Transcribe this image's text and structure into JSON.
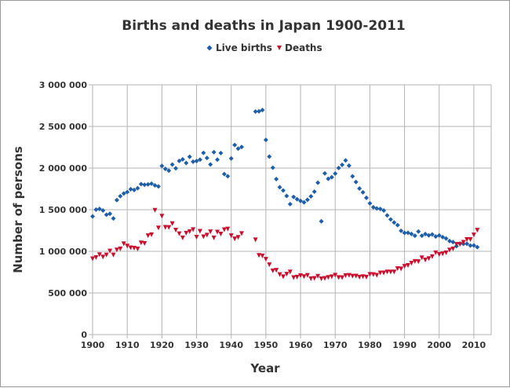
{
  "chart_data": {
    "type": "scatter",
    "title": "Births and deaths in Japan 1900-2011",
    "xlabel": "Year",
    "ylabel": "Number of persons",
    "xlim": [
      1900,
      2015
    ],
    "ylim": [
      0,
      3000000
    ],
    "xticks": [
      "1900",
      "1910",
      "1920",
      "1930",
      "1940",
      "1950",
      "1960",
      "1970",
      "1980",
      "1990",
      "2000",
      "2010"
    ],
    "yticks": [
      "0",
      "500 000",
      "1 000 000",
      "1 500 000",
      "2 000 000",
      "2 500 000",
      "3 000 000"
    ],
    "grid": true,
    "legend_position": "top",
    "series": [
      {
        "name": "Live births",
        "marker": "diamond",
        "color": "#1f5fa8",
        "x": [
          1900,
          1901,
          1902,
          1903,
          1904,
          1905,
          1906,
          1907,
          1908,
          1909,
          1910,
          1911,
          1912,
          1913,
          1914,
          1915,
          1916,
          1917,
          1918,
          1919,
          1920,
          1921,
          1922,
          1923,
          1924,
          1925,
          1926,
          1927,
          1928,
          1929,
          1930,
          1931,
          1932,
          1933,
          1934,
          1935,
          1936,
          1937,
          1938,
          1939,
          1940,
          1941,
          1942,
          1943,
          1947,
          1948,
          1949,
          1950,
          1951,
          1952,
          1953,
          1954,
          1955,
          1956,
          1957,
          1958,
          1959,
          1960,
          1961,
          1962,
          1963,
          1964,
          1965,
          1966,
          1967,
          1968,
          1969,
          1970,
          1971,
          1972,
          1973,
          1974,
          1975,
          1976,
          1977,
          1978,
          1979,
          1980,
          1981,
          1982,
          1983,
          1984,
          1985,
          1986,
          1987,
          1988,
          1989,
          1990,
          1991,
          1992,
          1993,
          1994,
          1995,
          1996,
          1997,
          1998,
          1999,
          2000,
          2001,
          2002,
          2003,
          2004,
          2005,
          2006,
          2007,
          2008,
          2009,
          2010,
          2011
        ],
        "values": [
          1420000,
          1501000,
          1510000,
          1490000,
          1440000,
          1452000,
          1395000,
          1615000,
          1663000,
          1694000,
          1712000,
          1747000,
          1737000,
          1758000,
          1808000,
          1800000,
          1804000,
          1813000,
          1792000,
          1779000,
          2026000,
          1991000,
          1969000,
          2043000,
          1998000,
          2086000,
          2105000,
          2061000,
          2136000,
          2077000,
          2085000,
          2102000,
          2183000,
          2121000,
          2044000,
          2191000,
          2101000,
          2181000,
          1928000,
          1902000,
          2116000,
          2277000,
          2234000,
          2254000,
          2679000,
          2682000,
          2697000,
          2338000,
          2138000,
          2005000,
          1868000,
          1770000,
          1731000,
          1665000,
          1567000,
          1653000,
          1626000,
          1606000,
          1589000,
          1619000,
          1660000,
          1717000,
          1824000,
          1361000,
          1936000,
          1872000,
          1890000,
          1934000,
          2001000,
          2039000,
          2092000,
          2030000,
          1901000,
          1833000,
          1755000,
          1709000,
          1643000,
          1577000,
          1529000,
          1515000,
          1509000,
          1490000,
          1432000,
          1383000,
          1347000,
          1315000,
          1247000,
          1222000,
          1223000,
          1209000,
          1188000,
          1238000,
          1187000,
          1207000,
          1192000,
          1203000,
          1178000,
          1191000,
          1171000,
          1154000,
          1124000,
          1111000,
          1063000,
          1093000,
          1090000,
          1091000,
          1070000,
          1071000,
          1051000
        ]
      },
      {
        "name": "Deaths",
        "marker": "triangle-down",
        "color": "#c8102e",
        "x": [
          1900,
          1901,
          1902,
          1903,
          1904,
          1905,
          1906,
          1907,
          1908,
          1909,
          1910,
          1911,
          1912,
          1913,
          1914,
          1915,
          1916,
          1917,
          1918,
          1919,
          1920,
          1921,
          1922,
          1923,
          1924,
          1925,
          1926,
          1927,
          1928,
          1929,
          1930,
          1931,
          1932,
          1933,
          1934,
          1935,
          1936,
          1937,
          1938,
          1939,
          1940,
          1941,
          1942,
          1943,
          1947,
          1948,
          1949,
          1950,
          1951,
          1952,
          1953,
          1954,
          1955,
          1956,
          1957,
          1958,
          1959,
          1960,
          1961,
          1962,
          1963,
          1964,
          1965,
          1966,
          1967,
          1968,
          1969,
          1970,
          1971,
          1972,
          1973,
          1974,
          1975,
          1976,
          1977,
          1978,
          1979,
          1980,
          1981,
          1982,
          1983,
          1984,
          1985,
          1986,
          1987,
          1988,
          1989,
          1990,
          1991,
          1992,
          1993,
          1994,
          1995,
          1996,
          1997,
          1998,
          1999,
          2000,
          2001,
          2002,
          2003,
          2004,
          2005,
          2006,
          2007,
          2008,
          2009,
          2010,
          2011
        ],
        "values": [
          910000,
          926000,
          960000,
          932000,
          956000,
          1004000,
          956000,
          1017000,
          1030000,
          1091000,
          1064000,
          1043000,
          1038000,
          1028000,
          1101000,
          1094000,
          1188000,
          1199000,
          1493000,
          1281000,
          1422000,
          1288000,
          1287000,
          1332000,
          1255000,
          1211000,
          1161000,
          1218000,
          1237000,
          1261000,
          1170000,
          1241000,
          1175000,
          1194000,
          1235000,
          1162000,
          1231000,
          1208000,
          1260000,
          1268000,
          1187000,
          1150000,
          1167000,
          1213000,
          1138000,
          950000,
          945000,
          905000,
          839000,
          765000,
          772000,
          721000,
          694000,
          725000,
          752000,
          684000,
          690000,
          707000,
          696000,
          711000,
          671000,
          674000,
          700000,
          670000,
          675000,
          686000,
          694000,
          713000,
          685000,
          684000,
          709000,
          711000,
          702000,
          703000,
          690000,
          696000,
          690000,
          723000,
          720000,
          712000,
          740000,
          740000,
          752000,
          751000,
          752000,
          793000,
          789000,
          820000,
          830000,
          857000,
          879000,
          876000,
          922000,
          896000,
          913000,
          936000,
          982000,
          962000,
          970000,
          982000,
          1015000,
          1029000,
          1084000,
          1084000,
          1108000,
          1142000,
          1142000,
          1197000,
          1253000
        ]
      }
    ]
  }
}
